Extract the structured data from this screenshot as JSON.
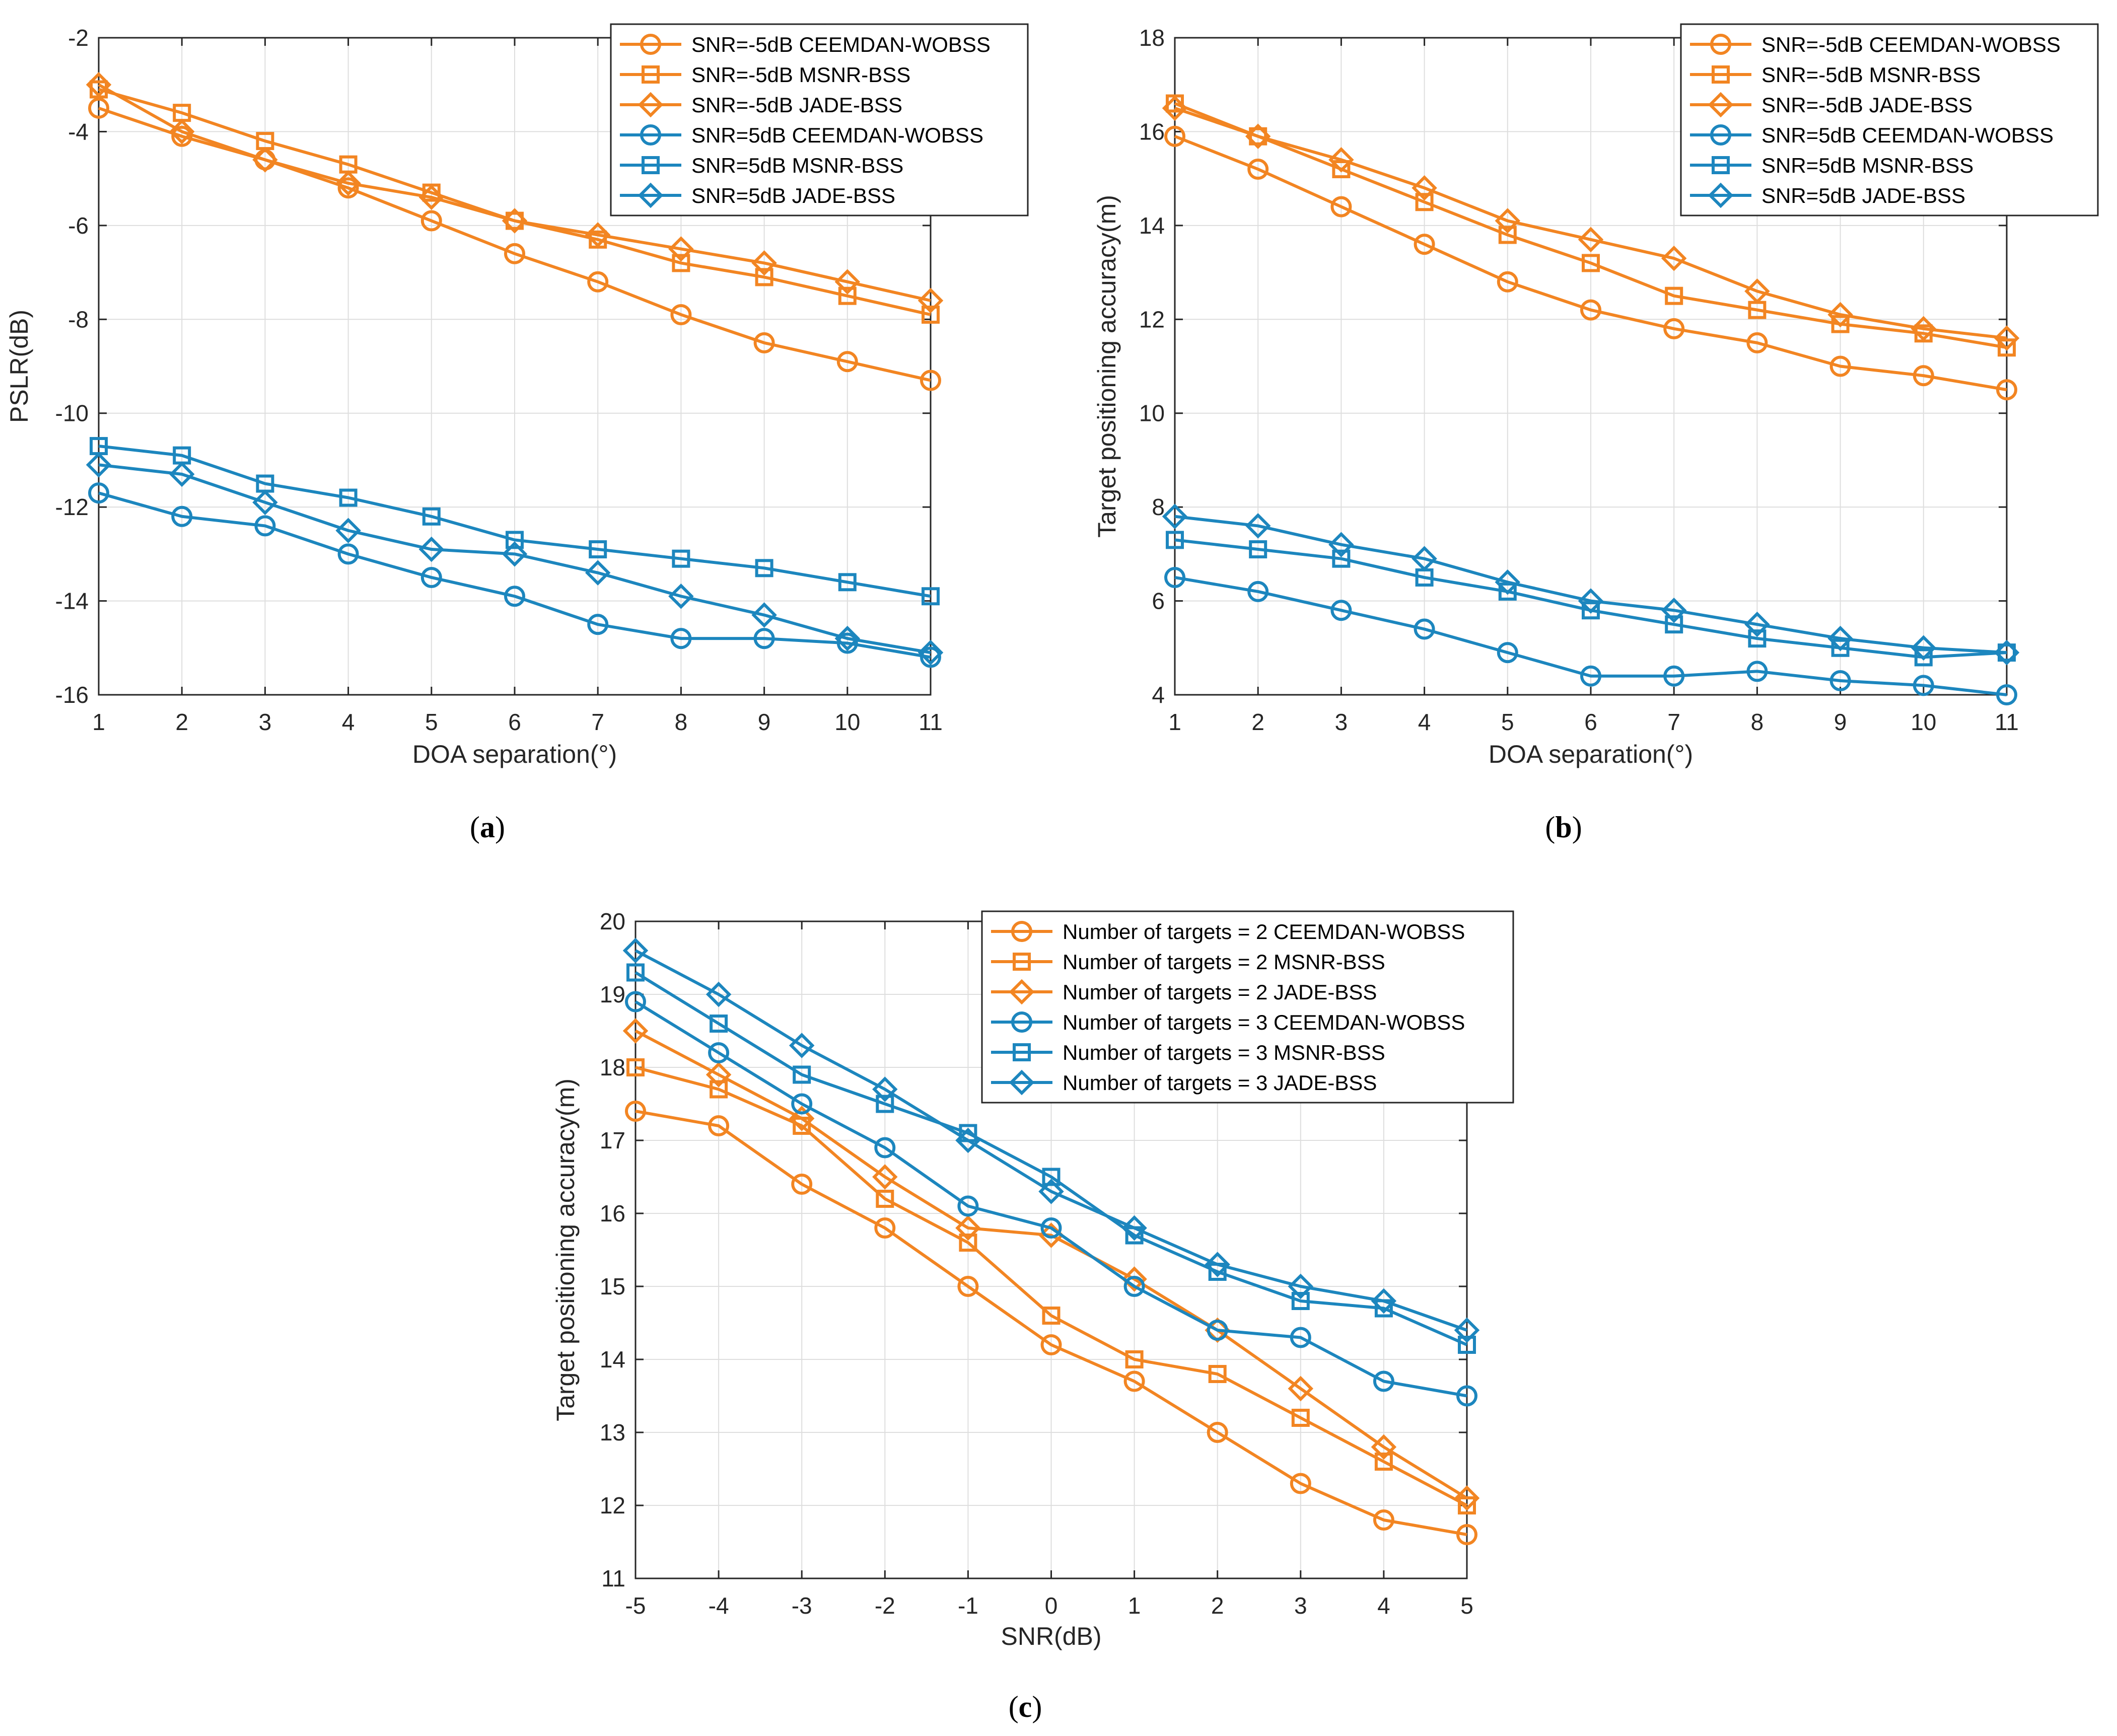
{
  "colors": {
    "orange": "#F28522",
    "blue": "#1C86BE",
    "grid": "#DEDEDE",
    "axis": "#262626"
  },
  "chart_data": [
    {
      "id": "a",
      "type": "line",
      "caption_label": "a",
      "xlabel": "DOA separation(°)",
      "ylabel": "PSLR(dB)",
      "xlim": [
        1,
        11
      ],
      "ylim": [
        -16,
        -2
      ],
      "xticks": [
        1,
        2,
        3,
        4,
        5,
        6,
        7,
        8,
        9,
        10,
        11
      ],
      "yticks": [
        -16,
        -14,
        -12,
        -10,
        -8,
        -6,
        -4,
        -2
      ],
      "xtick_labels": [
        "1",
        "2",
        "3",
        "4",
        "5",
        "6",
        "7",
        "8",
        "9",
        "10",
        "11"
      ],
      "ytick_labels": [
        "-16",
        "-14",
        "-12",
        "-10",
        "-8",
        "-6",
        "-4",
        "-2"
      ],
      "x": [
        1,
        2,
        3,
        4,
        5,
        6,
        7,
        8,
        9,
        10,
        11
      ],
      "legend_position": "top-right",
      "series": [
        {
          "name": "SNR=-5dB CEEMDAN-WOBSS",
          "color": "orange",
          "marker": "circle",
          "values": [
            -3.5,
            -4.1,
            -4.6,
            -5.2,
            -5.9,
            -6.6,
            -7.2,
            -7.9,
            -8.5,
            -8.9,
            -9.3
          ]
        },
        {
          "name": "SNR=-5dB MSNR-BSS",
          "color": "orange",
          "marker": "square",
          "values": [
            -3.1,
            -3.6,
            -4.2,
            -4.7,
            -5.3,
            -5.9,
            -6.3,
            -6.8,
            -7.1,
            -7.5,
            -7.9
          ]
        },
        {
          "name": "SNR=-5dB JADE-BSS",
          "color": "orange",
          "marker": "diamond",
          "values": [
            -3.0,
            -4.0,
            -4.6,
            -5.1,
            -5.4,
            -5.9,
            -6.2,
            -6.5,
            -6.8,
            -7.2,
            -7.6
          ]
        },
        {
          "name": "SNR=5dB CEEMDAN-WOBSS",
          "color": "blue",
          "marker": "circle",
          "values": [
            -11.7,
            -12.2,
            -12.4,
            -13.0,
            -13.5,
            -13.9,
            -14.5,
            -14.8,
            -14.8,
            -14.9,
            -15.2
          ]
        },
        {
          "name": "SNR=5dB MSNR-BSS",
          "color": "blue",
          "marker": "square",
          "values": [
            -10.7,
            -10.9,
            -11.5,
            -11.8,
            -12.2,
            -12.7,
            -12.9,
            -13.1,
            -13.3,
            -13.6,
            -13.9
          ]
        },
        {
          "name": "SNR=5dB JADE-BSS",
          "color": "blue",
          "marker": "diamond",
          "values": [
            -11.1,
            -11.3,
            -11.9,
            -12.5,
            -12.9,
            -13.0,
            -13.4,
            -13.9,
            -14.3,
            -14.8,
            -15.1
          ]
        }
      ]
    },
    {
      "id": "b",
      "type": "line",
      "caption_label": "b",
      "xlabel": "DOA separation(°)",
      "ylabel": "Target positioning accuracy(m)",
      "xlim": [
        1,
        11
      ],
      "ylim": [
        4,
        18
      ],
      "xticks": [
        1,
        2,
        3,
        4,
        5,
        6,
        7,
        8,
        9,
        10,
        11
      ],
      "yticks": [
        4,
        6,
        8,
        10,
        12,
        14,
        16,
        18
      ],
      "xtick_labels": [
        "1",
        "2",
        "3",
        "4",
        "5",
        "6",
        "7",
        "8",
        "9",
        "10",
        "11"
      ],
      "ytick_labels": [
        "4",
        "6",
        "8",
        "10",
        "12",
        "14",
        "16",
        "18"
      ],
      "x": [
        1,
        2,
        3,
        4,
        5,
        6,
        7,
        8,
        9,
        10,
        11
      ],
      "legend_position": "top-right",
      "series": [
        {
          "name": "SNR=-5dB CEEMDAN-WOBSS",
          "color": "orange",
          "marker": "circle",
          "values": [
            15.9,
            15.2,
            14.4,
            13.6,
            12.8,
            12.2,
            11.8,
            11.5,
            11.0,
            10.8,
            10.5
          ]
        },
        {
          "name": "SNR=-5dB MSNR-BSS",
          "color": "orange",
          "marker": "square",
          "values": [
            16.6,
            15.9,
            15.2,
            14.5,
            13.8,
            13.2,
            12.5,
            12.2,
            11.9,
            11.7,
            11.4
          ]
        },
        {
          "name": "SNR=-5dB JADE-BSS",
          "color": "orange",
          "marker": "diamond",
          "values": [
            16.5,
            15.9,
            15.4,
            14.8,
            14.1,
            13.7,
            13.3,
            12.6,
            12.1,
            11.8,
            11.6
          ]
        },
        {
          "name": "SNR=5dB CEEMDAN-WOBSS",
          "color": "blue",
          "marker": "circle",
          "values": [
            6.5,
            6.2,
            5.8,
            5.4,
            4.9,
            4.4,
            4.4,
            4.5,
            4.3,
            4.2,
            4.0
          ]
        },
        {
          "name": "SNR=5dB MSNR-BSS",
          "color": "blue",
          "marker": "square",
          "values": [
            7.3,
            7.1,
            6.9,
            6.5,
            6.2,
            5.8,
            5.5,
            5.2,
            5.0,
            4.8,
            4.9
          ]
        },
        {
          "name": "SNR=5dB JADE-BSS",
          "color": "blue",
          "marker": "diamond",
          "values": [
            7.8,
            7.6,
            7.2,
            6.9,
            6.4,
            6.0,
            5.8,
            5.5,
            5.2,
            5.0,
            4.9
          ]
        }
      ]
    },
    {
      "id": "c",
      "type": "line",
      "caption_label": "c",
      "xlabel": "SNR(dB)",
      "ylabel": "Target positioning accuracy(m)",
      "xlim": [
        -5,
        5
      ],
      "ylim": [
        11,
        20
      ],
      "xticks": [
        -5,
        -4,
        -3,
        -2,
        -1,
        0,
        1,
        2,
        3,
        4,
        5
      ],
      "yticks": [
        11,
        12,
        13,
        14,
        15,
        16,
        17,
        18,
        19,
        20
      ],
      "xtick_labels": [
        "-5",
        "-4",
        "-3",
        "-2",
        "-1",
        "0",
        "1",
        "2",
        "3",
        "4",
        "5"
      ],
      "ytick_labels": [
        "11",
        "12",
        "13",
        "14",
        "15",
        "16",
        "17",
        "18",
        "19",
        "20"
      ],
      "x": [
        -5,
        -4,
        -3,
        -2,
        -1,
        0,
        1,
        2,
        3,
        4,
        5
      ],
      "legend_position": "top-right",
      "series": [
        {
          "name": "Number of targets = 2 CEEMDAN-WOBSS",
          "color": "orange",
          "marker": "circle",
          "values": [
            17.4,
            17.2,
            16.4,
            15.8,
            15.0,
            14.2,
            13.7,
            13.0,
            12.3,
            11.8,
            11.6
          ]
        },
        {
          "name": "Number of targets = 2 MSNR-BSS",
          "color": "orange",
          "marker": "square",
          "values": [
            18.0,
            17.7,
            17.2,
            16.2,
            15.6,
            14.6,
            14.0,
            13.8,
            13.2,
            12.6,
            12.0
          ]
        },
        {
          "name": "Number of targets = 2 JADE-BSS",
          "color": "orange",
          "marker": "diamond",
          "values": [
            18.5,
            17.9,
            17.3,
            16.5,
            15.8,
            15.7,
            15.1,
            14.4,
            13.6,
            12.8,
            12.1
          ]
        },
        {
          "name": "Number of targets = 3 CEEMDAN-WOBSS",
          "color": "blue",
          "marker": "circle",
          "values": [
            18.9,
            18.2,
            17.5,
            16.9,
            16.1,
            15.8,
            15.0,
            14.4,
            14.3,
            13.7,
            13.5
          ]
        },
        {
          "name": "Number of targets = 3 MSNR-BSS",
          "color": "blue",
          "marker": "square",
          "values": [
            19.3,
            18.6,
            17.9,
            17.5,
            17.1,
            16.5,
            15.7,
            15.2,
            14.8,
            14.7,
            14.2
          ]
        },
        {
          "name": "Number of targets = 3 JADE-BSS",
          "color": "blue",
          "marker": "diamond",
          "values": [
            19.6,
            19.0,
            18.3,
            17.7,
            17.0,
            16.3,
            15.8,
            15.3,
            15.0,
            14.8,
            14.4
          ]
        }
      ]
    }
  ]
}
